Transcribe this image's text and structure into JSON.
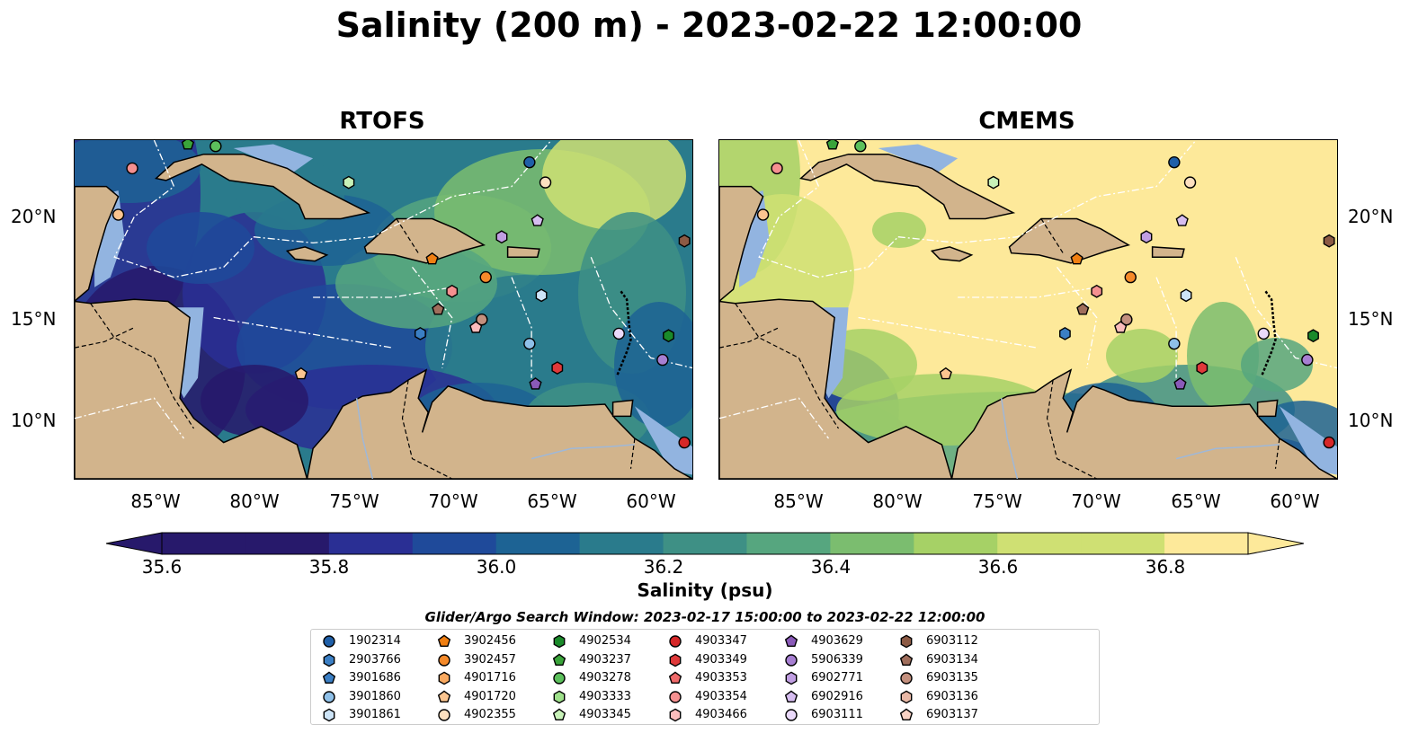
{
  "title": "Salinity (200 m) - 2023-02-22 12:00:00",
  "panels": [
    {
      "title": "RTOFS"
    },
    {
      "title": "CMEMS"
    }
  ],
  "lat_ticks": [
    "20°N",
    "15°N",
    "10°N"
  ],
  "lon_ticks": [
    "85°W",
    "80°W",
    "75°W",
    "70°W",
    "65°W",
    "60°W"
  ],
  "colorbar": {
    "label": "Salinity (psu)",
    "ticks": [
      "35.6",
      "35.8",
      "36.0",
      "36.2",
      "36.4",
      "36.6",
      "36.8"
    ],
    "colors": [
      "#27196b",
      "#2a2f94",
      "#1f4a9a",
      "#1d6394",
      "#2a7b8c",
      "#3e9085",
      "#56a67f",
      "#7bbd6f",
      "#a6d166",
      "#cfe073",
      "#fde99a"
    ]
  },
  "legend": {
    "title": "Glider/Argo Search Window: 2023-02-17 15:00:00 to 2023-02-22 12:00:00",
    "items": [
      {
        "id": "1902314",
        "color": "#1f5fa8",
        "shape": "circle"
      },
      {
        "id": "2903766",
        "color": "#3b7fc4",
        "shape": "hexagon"
      },
      {
        "id": "3901686",
        "color": "#3b7fc4",
        "shape": "pentagon"
      },
      {
        "id": "3901860",
        "color": "#8fc0e8",
        "shape": "circle"
      },
      {
        "id": "3901861",
        "color": "#cde4f7",
        "shape": "hexagon"
      },
      {
        "id": "3902456",
        "color": "#f07f12",
        "shape": "pentagon"
      },
      {
        "id": "3902457",
        "color": "#f58a2a",
        "shape": "circle"
      },
      {
        "id": "4901716",
        "color": "#f9a960",
        "shape": "hexagon"
      },
      {
        "id": "4901720",
        "color": "#fbc590",
        "shape": "pentagon"
      },
      {
        "id": "4902355",
        "color": "#fde0c0",
        "shape": "circle"
      },
      {
        "id": "4902534",
        "color": "#1a8a2a",
        "shape": "hexagon"
      },
      {
        "id": "4903237",
        "color": "#3aa43a",
        "shape": "pentagon"
      },
      {
        "id": "4903278",
        "color": "#5cc05c",
        "shape": "circle"
      },
      {
        "id": "4903333",
        "color": "#9ee08a",
        "shape": "hexagon"
      },
      {
        "id": "4903345",
        "color": "#c8f2b8",
        "shape": "pentagon"
      },
      {
        "id": "4903347",
        "color": "#d62728",
        "shape": "circle"
      },
      {
        "id": "4903349",
        "color": "#e0393a",
        "shape": "hexagon"
      },
      {
        "id": "4903353",
        "color": "#f06a6a",
        "shape": "pentagon"
      },
      {
        "id": "4903354",
        "color": "#f59090",
        "shape": "circle"
      },
      {
        "id": "4903466",
        "color": "#fbbcbc",
        "shape": "hexagon"
      },
      {
        "id": "4903629",
        "color": "#8a5ab8",
        "shape": "pentagon"
      },
      {
        "id": "5906339",
        "color": "#a77fd2",
        "shape": "circle"
      },
      {
        "id": "6902771",
        "color": "#c09ee2",
        "shape": "hexagon"
      },
      {
        "id": "6902916",
        "color": "#d6bdf0",
        "shape": "pentagon"
      },
      {
        "id": "6903111",
        "color": "#ead9fa",
        "shape": "circle"
      },
      {
        "id": "6903112",
        "color": "#8c5a44",
        "shape": "hexagon"
      },
      {
        "id": "6903134",
        "color": "#a06e5c",
        "shape": "pentagon"
      },
      {
        "id": "6903135",
        "color": "#c4907e",
        "shape": "circle"
      },
      {
        "id": "6903136",
        "color": "#e8b8a6",
        "shape": "hexagon"
      },
      {
        "id": "6903137",
        "color": "#f8d2c4",
        "shape": "pentagon"
      }
    ]
  },
  "floats": [
    {
      "lon": -86.1,
      "lat": 22.4,
      "color": "#f59090",
      "shape": "circle"
    },
    {
      "lon": -86.8,
      "lat": 20.1,
      "color": "#fbc590",
      "shape": "circle"
    },
    {
      "lon": -81.9,
      "lat": 23.5,
      "color": "#5cc05c",
      "shape": "circle"
    },
    {
      "lon": -83.3,
      "lat": 23.6,
      "color": "#3aa43a",
      "shape": "pentagon"
    },
    {
      "lon": -75.2,
      "lat": 21.7,
      "color": "#c8f2b8",
      "shape": "hexagon"
    },
    {
      "lon": -66.1,
      "lat": 22.7,
      "color": "#1f5fa8",
      "shape": "circle"
    },
    {
      "lon": -65.3,
      "lat": 21.7,
      "color": "#fde0c0",
      "shape": "circle"
    },
    {
      "lon": -65.7,
      "lat": 19.8,
      "color": "#d6bdf0",
      "shape": "pentagon"
    },
    {
      "lon": -67.5,
      "lat": 19.0,
      "color": "#c09ee2",
      "shape": "hexagon"
    },
    {
      "lon": -71.0,
      "lat": 17.9,
      "color": "#f07f12",
      "shape": "pentagon"
    },
    {
      "lon": -68.3,
      "lat": 17.0,
      "color": "#f58a2a",
      "shape": "circle"
    },
    {
      "lon": -70.0,
      "lat": 16.3,
      "color": "#f59090",
      "shape": "hexagon"
    },
    {
      "lon": -65.5,
      "lat": 16.1,
      "color": "#cde4f7",
      "shape": "hexagon"
    },
    {
      "lon": -70.7,
      "lat": 15.4,
      "color": "#a06e5c",
      "shape": "pentagon"
    },
    {
      "lon": -68.5,
      "lat": 14.9,
      "color": "#c4907e",
      "shape": "circle"
    },
    {
      "lon": -68.8,
      "lat": 14.5,
      "color": "#fbbcbc",
      "shape": "pentagon"
    },
    {
      "lon": -71.6,
      "lat": 14.2,
      "color": "#3b7fc4",
      "shape": "hexagon"
    },
    {
      "lon": -66.1,
      "lat": 13.7,
      "color": "#8fc0e8",
      "shape": "circle"
    },
    {
      "lon": -61.6,
      "lat": 14.2,
      "color": "#ead9fa",
      "shape": "circle"
    },
    {
      "lon": -59.1,
      "lat": 14.1,
      "color": "#1a8a2a",
      "shape": "hexagon"
    },
    {
      "lon": -59.4,
      "lat": 12.9,
      "color": "#a77fd2",
      "shape": "circle"
    },
    {
      "lon": -64.7,
      "lat": 12.5,
      "color": "#e0393a",
      "shape": "hexagon"
    },
    {
      "lon": -65.8,
      "lat": 11.7,
      "color": "#8a5ab8",
      "shape": "pentagon"
    },
    {
      "lon": -77.6,
      "lat": 12.2,
      "color": "#fbc590",
      "shape": "pentagon"
    },
    {
      "lon": -58.3,
      "lat": 18.8,
      "color": "#8c5a44",
      "shape": "hexagon"
    },
    {
      "lon": -58.3,
      "lat": 8.8,
      "color": "#d62728",
      "shape": "circle"
    }
  ]
}
